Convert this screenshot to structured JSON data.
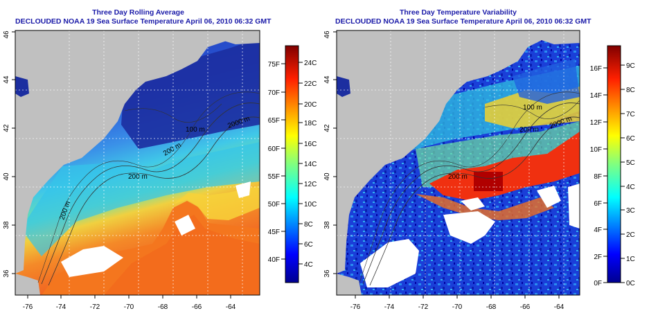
{
  "panels": [
    {
      "title_line1": "Three Day Rolling Average",
      "title_line2": "DECLOUDED NOAA 19 Sea Surface Temperature April 06, 2010 06:32 GMT",
      "lon_ticks": [
        "-76",
        "-74",
        "-72",
        "-70",
        "-68",
        "-66",
        "-64"
      ],
      "lat_ticks": [
        "36",
        "38",
        "40",
        "42",
        "44",
        "46"
      ],
      "contour_labels": [
        "200 m",
        "100 m",
        "2000 m",
        "200 m",
        "200 m"
      ],
      "colorbar": {
        "f_labels": [
          "75F",
          "70F",
          "65F",
          "60F",
          "55F",
          "50F",
          "45F",
          "40F"
        ],
        "c_labels": [
          "24C",
          "22C",
          "20C",
          "18C",
          "16C",
          "14C",
          "12C",
          "10C",
          "8C",
          "6C",
          "4C"
        ]
      }
    },
    {
      "title_line1": "Three Day Temperature Variability",
      "title_line2": "DECLOUDED NOAA 19 Sea Surface Temperature April 06, 2010 06:32 GMT",
      "lon_ticks": [
        "-76",
        "-74",
        "-72",
        "-70",
        "-68",
        "-66",
        "-64"
      ],
      "lat_ticks": [
        "36",
        "38",
        "40",
        "42",
        "44",
        "46"
      ],
      "contour_labels": [
        "100 m",
        "200 m",
        "2000 m",
        "200 m"
      ],
      "colorbar": {
        "f_labels": [
          "16F",
          "14F",
          "12F",
          "10F",
          "8F",
          "6F",
          "4F",
          "2F",
          "0F"
        ],
        "c_labels": [
          "9C",
          "8C",
          "7C",
          "6C",
          "5C",
          "4C",
          "3C",
          "2C",
          "1C",
          "0C"
        ]
      }
    }
  ],
  "colors": {
    "land": "#c0c0c0",
    "title": "#1a1aa8",
    "no_data": "#ffffff"
  }
}
